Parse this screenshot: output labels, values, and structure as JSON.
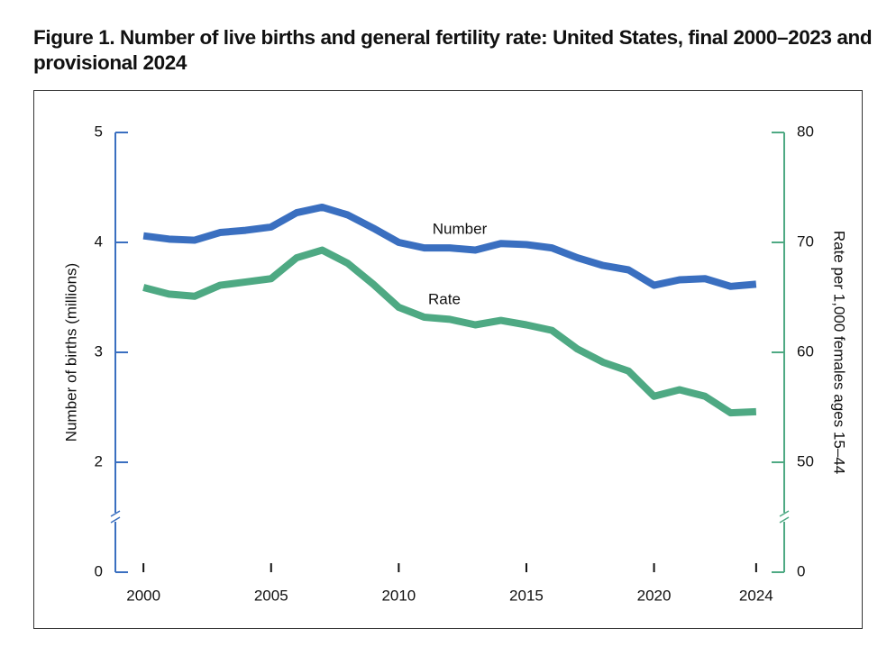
{
  "chart_data": {
    "type": "line",
    "title": "Figure 1. Number of live births and general fertility rate: United States, final 2000–2023 and provisional 2024",
    "ylabel": "Number of births (millions)",
    "y2label": "Rate per 1,000 females ages 15–44",
    "x": [
      2000,
      2001,
      2002,
      2003,
      2004,
      2005,
      2006,
      2007,
      2008,
      2009,
      2010,
      2011,
      2012,
      2013,
      2014,
      2015,
      2016,
      2017,
      2018,
      2019,
      2020,
      2021,
      2022,
      2023,
      2024
    ],
    "xlim": [
      1998.9,
      2025.1
    ],
    "xticks": [
      2000,
      2005,
      2010,
      2015,
      2020,
      2024
    ],
    "ylim": [
      0,
      5
    ],
    "yticks": [
      0,
      2,
      3,
      4,
      5
    ],
    "y2lim": [
      0,
      80
    ],
    "y2ticks": [
      0,
      50,
      60,
      70,
      80
    ],
    "axis_break": true,
    "series": [
      {
        "name": "Number",
        "color": "#3a6fc0",
        "values": [
          4.06,
          4.03,
          4.02,
          4.09,
          4.11,
          4.14,
          4.27,
          4.32,
          4.25,
          4.13,
          4.0,
          3.95,
          3.95,
          3.93,
          3.99,
          3.98,
          3.95,
          3.86,
          3.79,
          3.75,
          3.61,
          3.66,
          3.67,
          3.6,
          3.62
        ]
      },
      {
        "name": "Rate",
        "color": "#4ea983",
        "axis": "y2",
        "values": [
          65.9,
          65.3,
          65.1,
          66.1,
          66.4,
          66.7,
          68.6,
          69.3,
          68.1,
          66.2,
          64.1,
          63.2,
          63.0,
          62.5,
          62.9,
          62.5,
          62.0,
          60.3,
          59.1,
          58.3,
          56.0,
          56.6,
          56.0,
          54.5,
          54.6
        ]
      }
    ]
  }
}
